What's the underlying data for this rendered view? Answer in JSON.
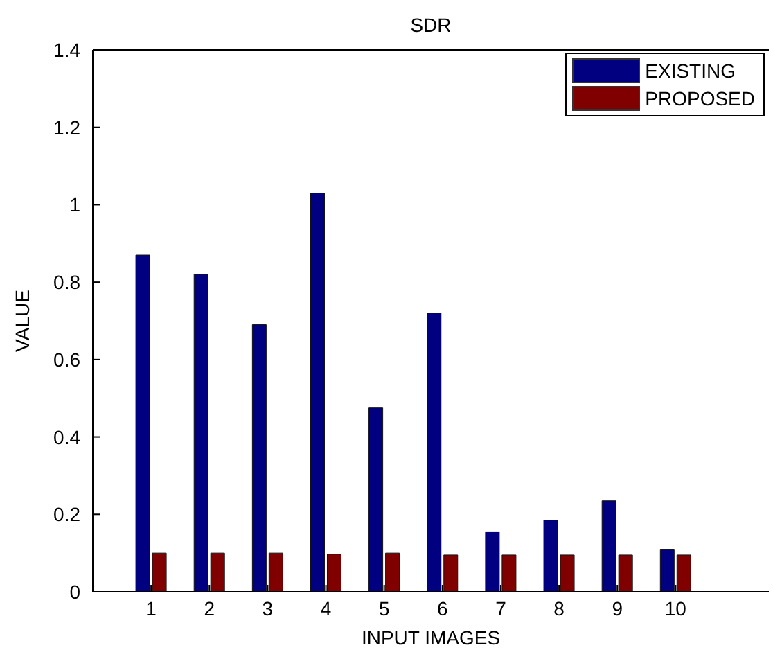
{
  "chart_data": {
    "type": "bar",
    "title": "SDR",
    "xlabel": "INPUT IMAGES",
    "ylabel": "VALUE",
    "x": [
      1,
      2,
      3,
      4,
      5,
      6,
      7,
      8,
      9,
      10
    ],
    "series": [
      {
        "name": "EXISTING",
        "color": "#000080",
        "values": [
          0.87,
          0.82,
          0.69,
          1.03,
          0.475,
          0.72,
          0.155,
          0.185,
          0.235,
          0.11
        ]
      },
      {
        "name": "PROPOSED",
        "color": "#800000",
        "values": [
          0.1,
          0.1,
          0.1,
          0.097,
          0.1,
          0.095,
          0.095,
          0.095,
          0.095,
          0.095
        ]
      }
    ],
    "xlim": [
      0,
      11.6
    ],
    "xticks": [
      1,
      2,
      3,
      4,
      5,
      6,
      7,
      8,
      9,
      10
    ],
    "ylim": [
      0,
      1.4
    ],
    "yticks": [
      0,
      0.2,
      0.4,
      0.6,
      0.8,
      1,
      1.2,
      1.4
    ],
    "grid": false,
    "legend": "top right"
  }
}
